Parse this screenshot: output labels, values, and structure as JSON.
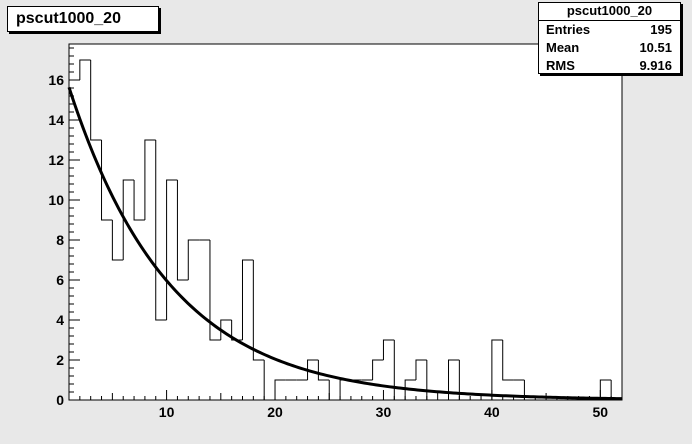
{
  "histogram": {
    "title": "pscut1000_20"
  },
  "stats": {
    "name": "pscut1000_20",
    "rows": [
      {
        "label": "Entries",
        "value": "195"
      },
      {
        "label": "Mean",
        "value": "10.51"
      },
      {
        "label": "RMS",
        "value": "9.916"
      }
    ]
  },
  "chart_data": {
    "type": "bar",
    "title": "pscut1000_20",
    "xlabel": "",
    "ylabel": "",
    "xlim": [
      1,
      52
    ],
    "ylim": [
      0,
      17.8
    ],
    "bin_width": 1,
    "bin_low_edges": [
      1,
      2,
      3,
      4,
      5,
      6,
      7,
      8,
      9,
      10,
      11,
      12,
      13,
      14,
      15,
      16,
      17,
      18,
      19,
      20,
      21,
      22,
      23,
      24,
      25,
      26,
      27,
      28,
      29,
      30,
      31,
      32,
      33,
      34,
      35,
      36,
      37,
      38,
      39,
      40,
      41,
      42,
      43,
      44,
      45,
      46,
      47,
      48,
      49,
      50,
      51
    ],
    "values": [
      16,
      17,
      13,
      9,
      7,
      11,
      9,
      13,
      4,
      11,
      6,
      8,
      8,
      3,
      4,
      3,
      7,
      2,
      0,
      1,
      1,
      1,
      2,
      1,
      0,
      1,
      1,
      1,
      2,
      3,
      0,
      1,
      2,
      0,
      0,
      2,
      0,
      0,
      0,
      3,
      1,
      1,
      0,
      0,
      0,
      0,
      0,
      0,
      0,
      1,
      0
    ],
    "x_ticks": [
      10,
      20,
      30,
      40,
      50
    ],
    "y_ticks": [
      0,
      2,
      4,
      6,
      8,
      10,
      12,
      14,
      16
    ],
    "fit": {
      "type": "exponential",
      "amplitude": 17.4,
      "decay": 0.107,
      "x_range": [
        1,
        52
      ]
    },
    "grid": false,
    "colors": {
      "histogram": "#000000",
      "fit": "#000000",
      "frame_fill": "#ffffff",
      "pad_fill": "#e8e8e8"
    }
  }
}
